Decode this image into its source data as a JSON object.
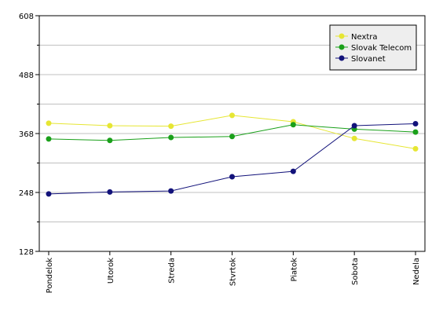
{
  "chart_data": {
    "type": "line",
    "title": "",
    "xlabel": "",
    "ylabel": "",
    "categories": [
      "Pondelok",
      "Utorok",
      "Streda",
      "Stvrtok",
      "Piatok",
      "Sobota",
      "Nedela"
    ],
    "ylim": [
      128,
      608
    ],
    "yticks": [
      "128",
      "248",
      "368",
      "488",
      "608"
    ],
    "grid": true,
    "legend_position": "top-right",
    "series": [
      {
        "name": "Nextra",
        "color": "#e6e633",
        "values": [
          389,
          384,
          383,
          405,
          392,
          358,
          337
        ]
      },
      {
        "name": "Slovak Telecom",
        "color": "#1aa01a",
        "values": [
          357,
          354,
          360,
          362,
          386,
          377,
          371
        ]
      },
      {
        "name": "Slovanet",
        "color": "#12127a",
        "values": [
          245,
          249,
          251,
          280,
          291,
          384,
          388
        ]
      }
    ]
  }
}
